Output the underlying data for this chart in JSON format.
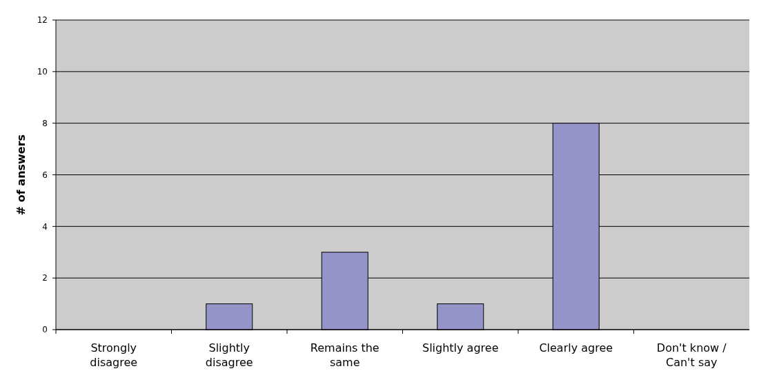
{
  "chart_data": {
    "type": "bar",
    "ylabel": "# of answers",
    "categories": [
      "Strongly disagree",
      "Slightly disagree",
      "Remains the same",
      "Slightly agree",
      "Clearly agree",
      "Don't know / Can't say"
    ],
    "values": [
      0,
      1,
      3,
      1,
      8,
      0
    ],
    "color": "#9494c9",
    "ylim": [
      0,
      12
    ],
    "yticks": [
      0,
      2,
      4,
      6,
      8,
      10,
      12
    ],
    "grid": "y"
  }
}
